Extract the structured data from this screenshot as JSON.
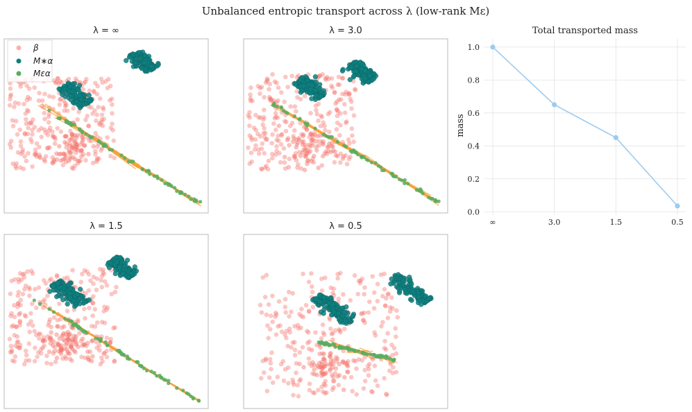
{
  "figure": {
    "title": "Unbalanced entropic transport across λ (low-rank Mε)"
  },
  "legend": {
    "items": [
      {
        "label": "β",
        "color": "#f4736b"
      },
      {
        "label": "M∗α",
        "color": "#0f7f7f"
      },
      {
        "label": "Mεα",
        "color": "#59ad60"
      }
    ]
  },
  "colors": {
    "beta": "#f4736b",
    "alpha_star": "#0f7f7f",
    "alpha_eps": "#59ad60",
    "transport": "#f7a031",
    "mass_line": "#9ccbef"
  },
  "chart_data": [
    {
      "type": "scatter",
      "title": "λ = ∞",
      "segment": {
        "start": [
          0.16,
          0.63
        ],
        "end": [
          0.96,
          0.05
        ],
        "spread": 0.6
      },
      "beta_region": {
        "x": [
          0.02,
          0.55
        ],
        "y": [
          0.25,
          0.78
        ]
      },
      "clusters": [
        {
          "center": [
            0.35,
            0.68
          ],
          "width": 0.16,
          "count": 140
        },
        {
          "center": [
            0.68,
            0.87
          ],
          "width": 0.13,
          "count": 120
        }
      ]
    },
    {
      "type": "scatter",
      "title": "λ = 3.0",
      "segment": {
        "start": [
          0.14,
          0.63
        ],
        "end": [
          0.96,
          0.06
        ],
        "spread": 0.45
      },
      "beta_region": {
        "x": [
          0.02,
          0.55
        ],
        "y": [
          0.25,
          0.8
        ]
      },
      "clusters": [
        {
          "center": [
            0.33,
            0.72
          ],
          "width": 0.15,
          "count": 140
        },
        {
          "center": [
            0.58,
            0.81
          ],
          "width": 0.14,
          "count": 120
        }
      ]
    },
    {
      "type": "scatter",
      "title": "λ = 1.5",
      "segment": {
        "start": [
          0.14,
          0.63
        ],
        "end": [
          0.96,
          0.04
        ],
        "spread": 0.3
      },
      "beta_region": {
        "x": [
          0.02,
          0.55
        ],
        "y": [
          0.25,
          0.8
        ]
      },
      "clusters": [
        {
          "center": [
            0.32,
            0.66
          ],
          "width": 0.18,
          "count": 140
        },
        {
          "center": [
            0.58,
            0.81
          ],
          "width": 0.14,
          "count": 120
        }
      ]
    },
    {
      "type": "scatter",
      "title": "λ = 0.5",
      "segment": {
        "start": [
          0.37,
          0.38
        ],
        "end": [
          0.74,
          0.28
        ],
        "spread": 0.8
      },
      "beta_region": {
        "x": [
          0.08,
          0.76
        ],
        "y": [
          0.06,
          0.78
        ]
      },
      "clusters": [
        {
          "center": [
            0.44,
            0.57
          ],
          "width": 0.22,
          "count": 140
        },
        {
          "center": [
            0.82,
            0.69
          ],
          "width": 0.22,
          "count": 120
        }
      ]
    },
    {
      "type": "line",
      "title": "Total transported mass",
      "xlabel": "",
      "ylabel": "mass",
      "categories": [
        "∞",
        "3.0",
        "1.5",
        "0.5"
      ],
      "values": [
        1.0,
        0.65,
        0.45,
        0.035
      ],
      "ylim": [
        -0.02,
        1.05
      ],
      "yticks": [
        "0.0",
        "0.2",
        "0.4",
        "0.6",
        "0.8",
        "1.0"
      ],
      "grid": true
    }
  ]
}
